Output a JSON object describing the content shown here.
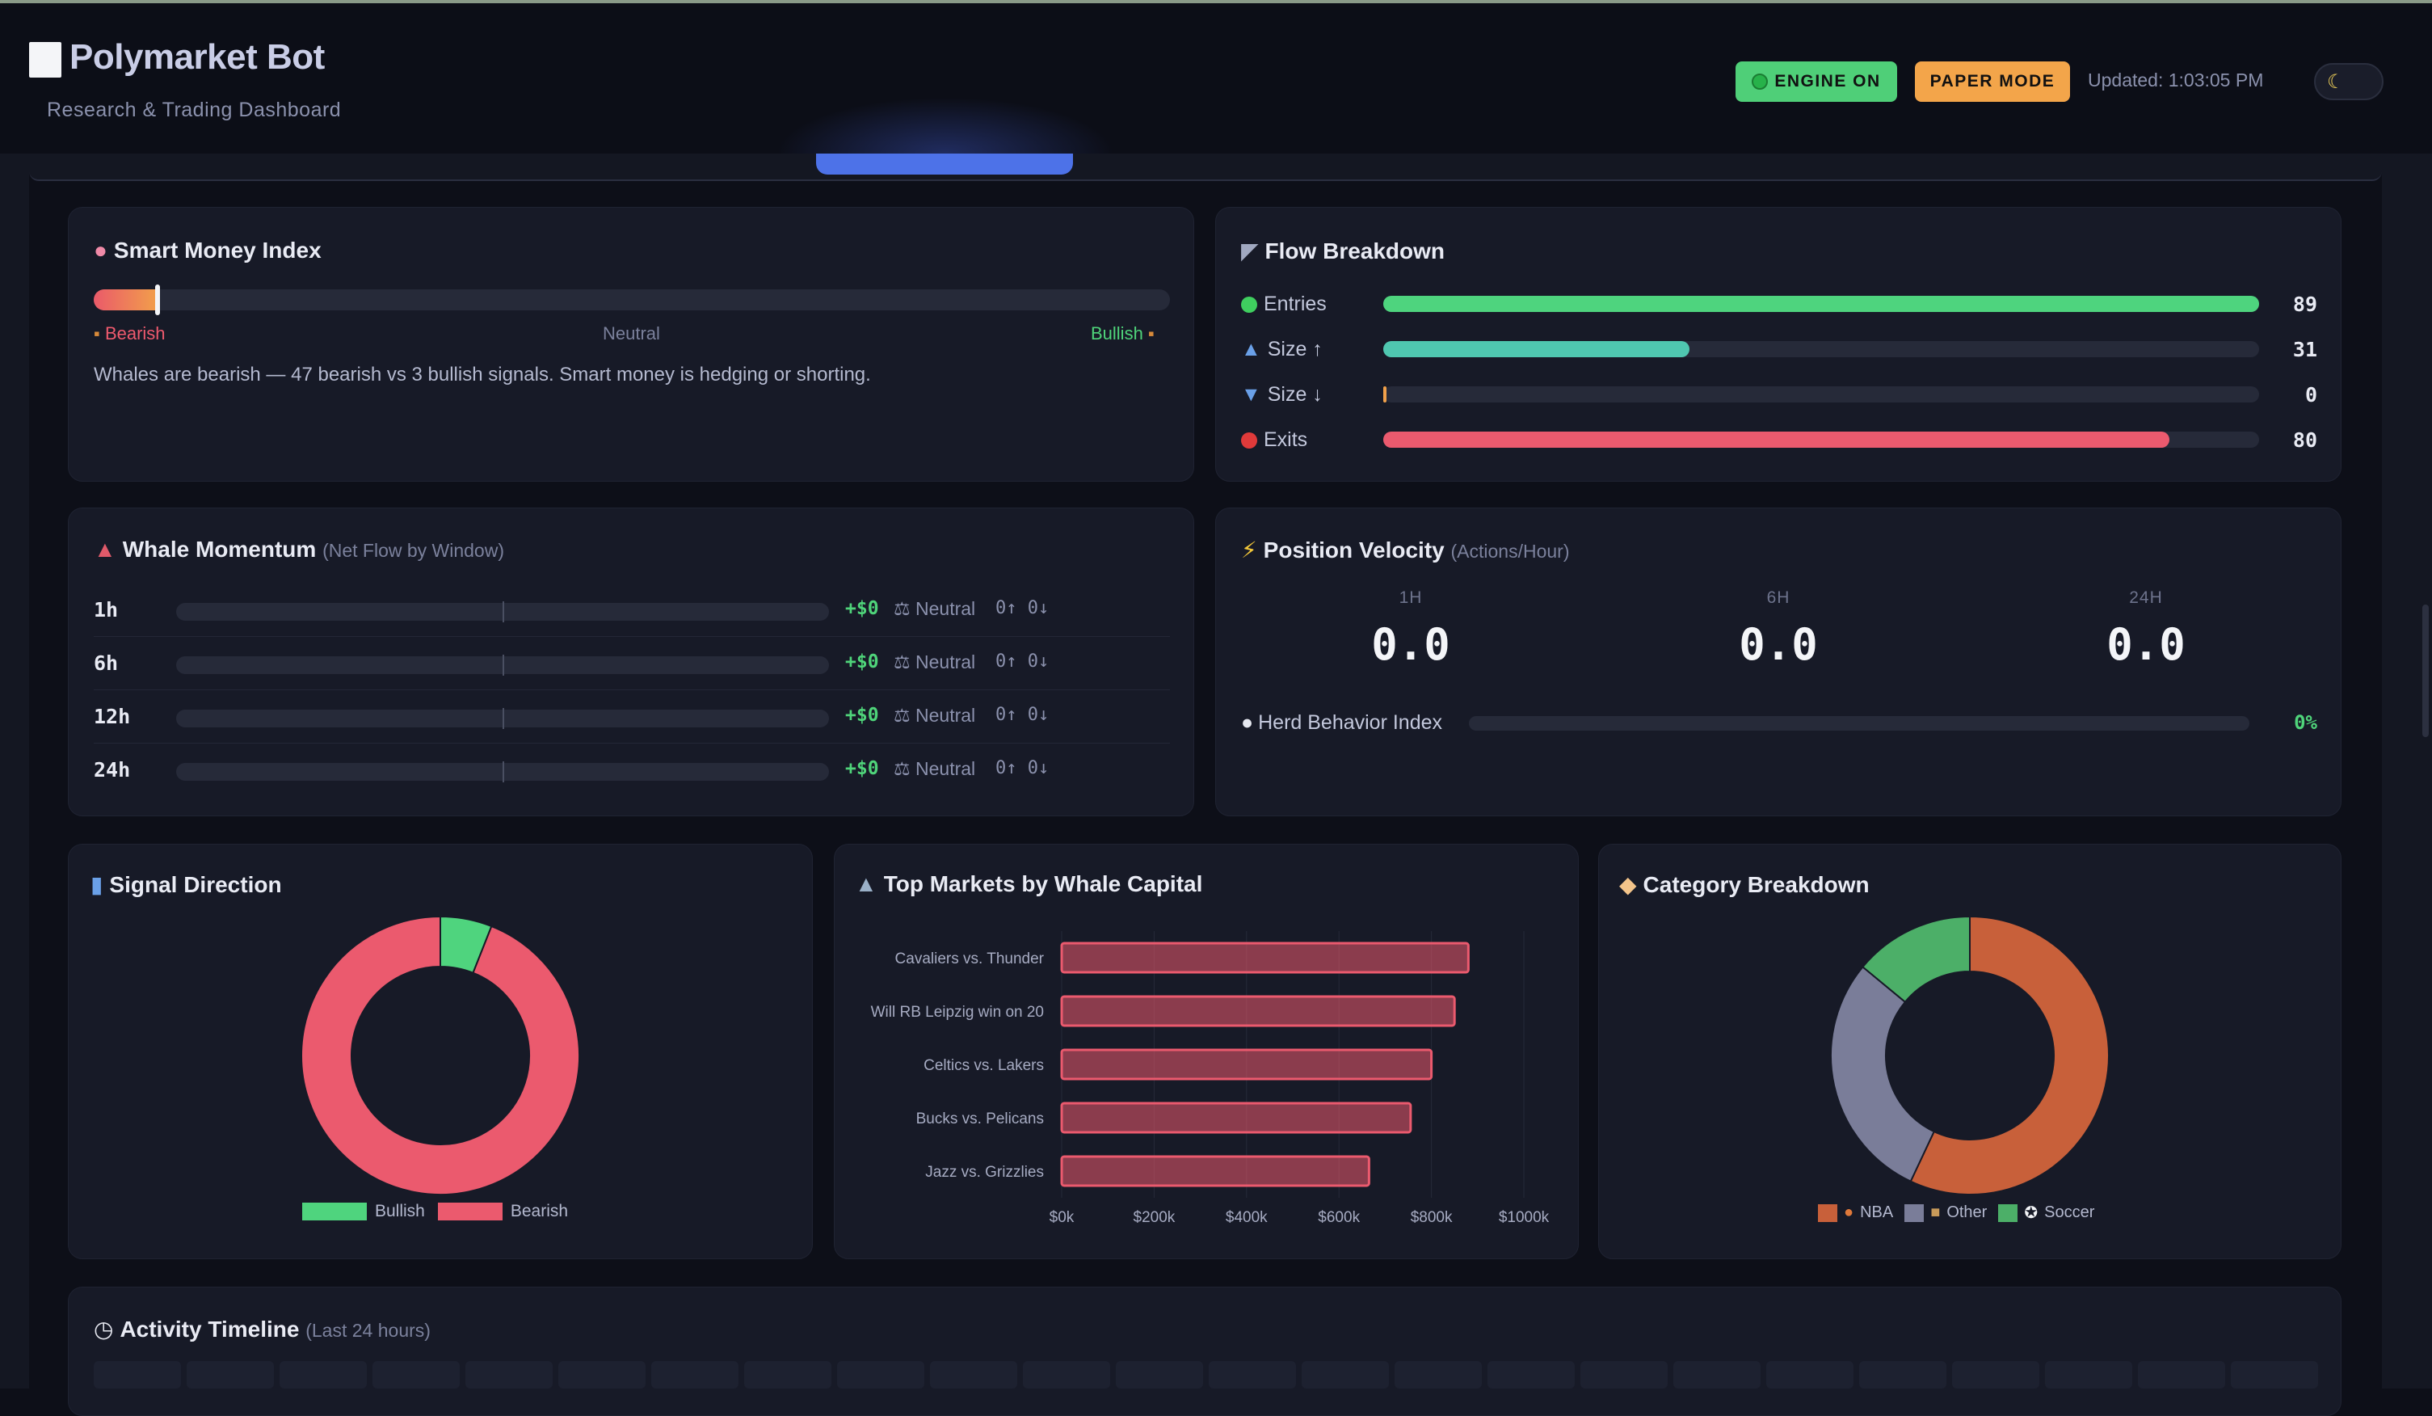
{
  "header": {
    "title": "Polymarket Bot",
    "subtitle": "Research & Trading Dashboard",
    "engine_badge": "ENGINE ON",
    "mode_badge": "PAPER MODE",
    "updated": "Updated: 1:03:05 PM",
    "theme_icon": "moon-icon"
  },
  "smart_money": {
    "icon": "brain-icon",
    "title": "Smart Money Index",
    "bearish_label": "Bearish",
    "neutral_label": "Neutral",
    "bullish_label": "Bullish",
    "index_fraction": 0.06,
    "description": "Whales are bearish — 47 bearish vs 3 bullish signals. Smart money is hedging or shorting."
  },
  "flow": {
    "icon": "satellite-icon",
    "title": "Flow Breakdown",
    "rows": [
      {
        "label": "Entries",
        "value": "89",
        "fraction": 1.0,
        "color": "#4ed47e"
      },
      {
        "label": "Size ↑",
        "value": "31",
        "fraction": 0.35,
        "color": "#4fc7b0"
      },
      {
        "label": "Size ↓",
        "value": "0",
        "fraction": 0.0,
        "color": "#f0a04a"
      },
      {
        "label": "Exits",
        "value": "80",
        "fraction": 0.898,
        "color": "#eb5a6e"
      }
    ]
  },
  "momentum": {
    "icon": "chart-up-icon",
    "title": "Whale Momentum",
    "subtitle": "(Net Flow by Window)",
    "rows": [
      {
        "window": "1h",
        "net": "+$0",
        "state": "Neutral",
        "counts": "0↑ 0↓"
      },
      {
        "window": "6h",
        "net": "+$0",
        "state": "Neutral",
        "counts": "0↑ 0↓"
      },
      {
        "window": "12h",
        "net": "+$0",
        "state": "Neutral",
        "counts": "0↑ 0↓"
      },
      {
        "window": "24h",
        "net": "+$0",
        "state": "Neutral",
        "counts": "0↑ 0↓"
      }
    ]
  },
  "velocity": {
    "icon": "lightning-icon",
    "title": "Position Velocity",
    "subtitle": "(Actions/Hour)",
    "windows": [
      {
        "label": "1H",
        "value": "0.0"
      },
      {
        "label": "6H",
        "value": "0.0"
      },
      {
        "label": "24H",
        "value": "0.0"
      }
    ],
    "herd_label": "Herd Behavior Index",
    "herd_value": "0%"
  },
  "signal": {
    "icon": "bar-chart-icon",
    "title": "Signal Direction"
  },
  "top_markets": {
    "icon": "mountain-icon",
    "title": "Top Markets by Whale Capital"
  },
  "category": {
    "icon": "tag-icon",
    "title": "Category Breakdown"
  },
  "timeline": {
    "icon": "stopwatch-icon",
    "title": "Activity Timeline",
    "subtitle": "(Last 24 hours)"
  },
  "chart_data": [
    {
      "type": "pie",
      "title": "Signal Direction",
      "labels": [
        "Bullish",
        "Bearish"
      ],
      "values": [
        3,
        47
      ],
      "colors": [
        "#4fd47e",
        "#eb5a6e"
      ],
      "legend": "bottom"
    },
    {
      "type": "bar",
      "orientation": "horizontal",
      "title": "Top Markets by Whale Capital",
      "categories": [
        "Cavaliers vs. Thunder",
        "Will RB Leipzig win on 20",
        "Celtics vs. Lakers",
        "Bucks vs. Pelicans",
        "Jazz vs. Grizzlies"
      ],
      "values": [
        880000,
        850000,
        800000,
        755000,
        665000
      ],
      "x_ticks": [
        "$0k",
        "$200k",
        "$400k",
        "$600k",
        "$800k",
        "$1000k"
      ],
      "xlim": [
        0,
        1000000
      ],
      "grid": true,
      "color": "#eb5a6e"
    },
    {
      "type": "pie",
      "title": "Category Breakdown",
      "labels": [
        "NBA",
        "Other",
        "Soccer"
      ],
      "label_icons": [
        "basketball-icon",
        "package-icon",
        "soccer-ball-icon"
      ],
      "values": [
        57,
        29,
        14
      ],
      "colors": [
        "#c8603a",
        "#7a7d99",
        "#4caf68"
      ],
      "legend": "bottom"
    }
  ]
}
